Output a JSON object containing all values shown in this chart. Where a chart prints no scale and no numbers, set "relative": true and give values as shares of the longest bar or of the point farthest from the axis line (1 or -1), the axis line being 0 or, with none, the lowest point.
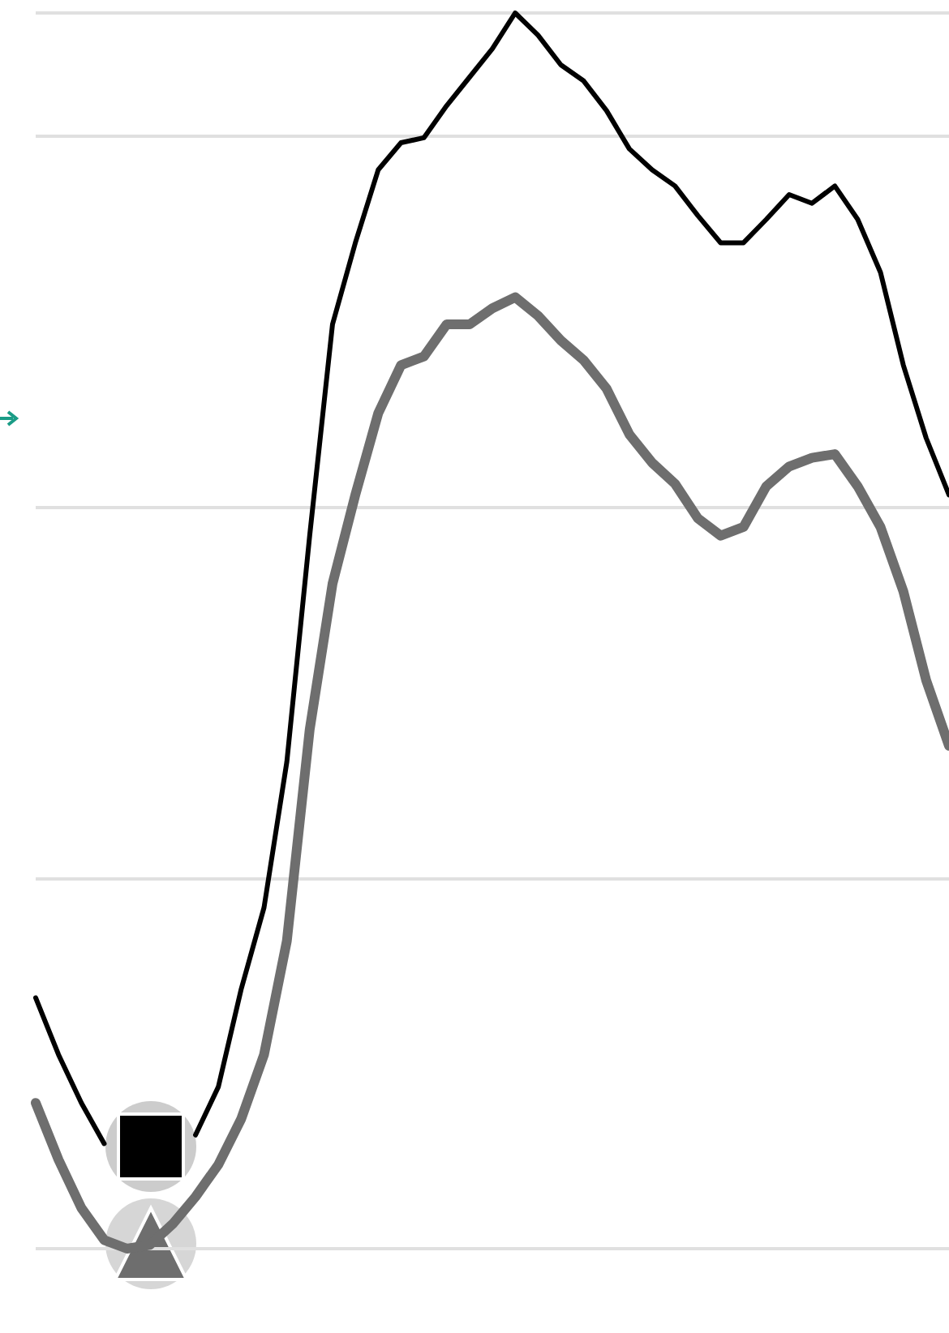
{
  "chart_data": {
    "type": "line",
    "relative": true,
    "grid": "y",
    "marker": "none",
    "line_style": "solid",
    "categories": [
      null,
      null,
      null,
      null,
      null,
      null,
      null,
      null,
      null,
      null,
      null,
      null,
      null,
      null,
      null,
      null,
      null,
      null,
      null,
      null,
      null,
      null,
      null,
      null,
      null,
      null,
      null,
      null,
      null,
      null,
      null,
      null,
      null,
      null,
      null,
      null,
      null,
      null,
      null,
      null,
      null
    ],
    "series": [
      {
        "color": "#000000",
        "values": [
          0.203,
          0.157,
          0.118,
          0.085,
          null,
          null,
          null,
          0.092,
          0.131,
          0.21,
          0.276,
          0.394,
          0.577,
          0.748,
          0.814,
          0.873,
          0.895,
          0.899,
          0.925,
          0.948,
          0.971,
          1.0,
          0.982,
          0.958,
          0.945,
          0.921,
          0.89,
          0.873,
          0.86,
          0.836,
          0.814,
          0.814,
          0.833,
          0.853,
          0.846,
          0.86,
          0.833,
          0.79,
          0.715,
          0.656,
          0.61
        ]
      },
      {
        "color": "#6e6e6e",
        "values": [
          0.118,
          0.072,
          0.033,
          0.007,
          0,
          0.003,
          0.02,
          0.042,
          0.068,
          0.105,
          0.157,
          0.249,
          0.42,
          0.538,
          0.61,
          0.676,
          0.715,
          0.722,
          0.748,
          0.748,
          0.761,
          0.77,
          0.755,
          0.735,
          0.719,
          0.696,
          0.659,
          0.636,
          0.619,
          0.591,
          0.577,
          0.584,
          0.617,
          0.633,
          0.64,
          0.643,
          0.617,
          0.584,
          0.532,
          0.46,
          0.407
        ]
      }
    ]
  }
}
